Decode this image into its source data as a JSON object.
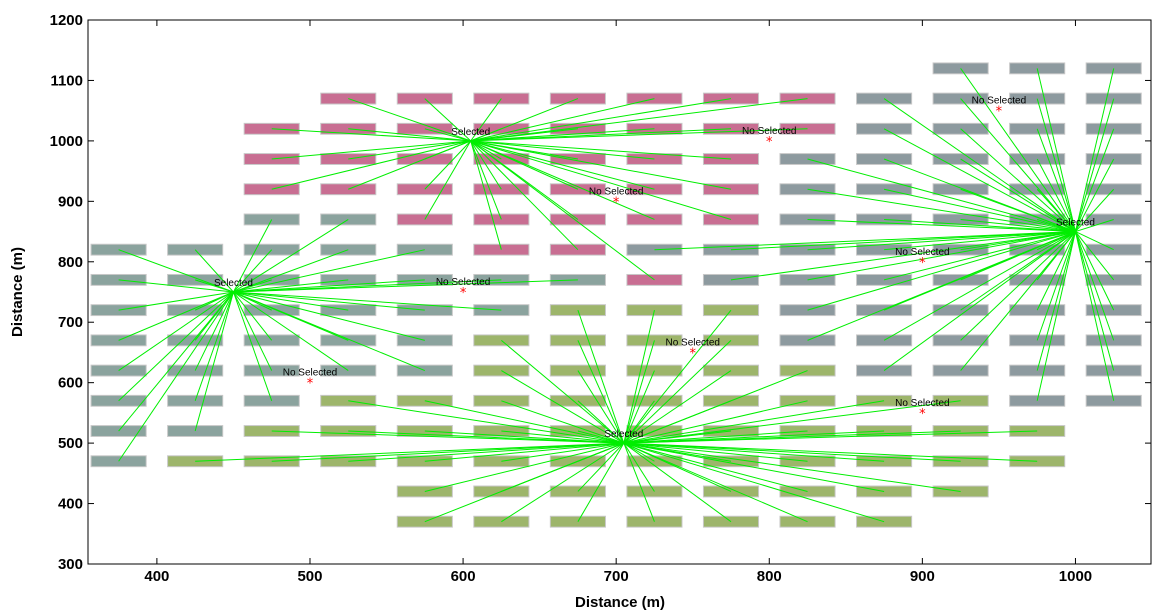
{
  "chart_data": {
    "type": "scatter",
    "title": "",
    "xlabel": "Distance (m)",
    "ylabel": "Distance (m)",
    "xlim": [
      355,
      1050
    ],
    "ylim": [
      300,
      1200
    ],
    "xticks": [
      400,
      500,
      600,
      700,
      800,
      900,
      1000
    ],
    "yticks": [
      300,
      400,
      500,
      600,
      700,
      800,
      900,
      1000,
      1100,
      1200
    ],
    "grid": false,
    "colors": {
      "pink": "#c86e92",
      "green": "#9db56b",
      "gray": "#8d9a9f",
      "teal": "#8ba39e",
      "link": "#00ee00",
      "unselected": "#ff0000"
    },
    "block_width": 36,
    "block_height": 18,
    "columns": [
      {
        "x": 375,
        "rows": [
          [
            470,
            "teal"
          ],
          [
            520,
            "teal"
          ],
          [
            570,
            "teal"
          ],
          [
            620,
            "teal"
          ],
          [
            670,
            "teal"
          ],
          [
            720,
            "teal"
          ],
          [
            770,
            "teal"
          ],
          [
            820,
            "teal"
          ]
        ]
      },
      {
        "x": 425,
        "rows": [
          [
            470,
            "green"
          ],
          [
            520,
            "teal"
          ],
          [
            570,
            "teal"
          ],
          [
            620,
            "teal"
          ],
          [
            670,
            "teal"
          ],
          [
            720,
            "teal"
          ],
          [
            770,
            "teal"
          ],
          [
            820,
            "teal"
          ]
        ]
      },
      {
        "x": 475,
        "rows": [
          [
            470,
            "green"
          ],
          [
            520,
            "green"
          ],
          [
            570,
            "teal"
          ],
          [
            620,
            "teal"
          ],
          [
            670,
            "teal"
          ],
          [
            720,
            "teal"
          ],
          [
            770,
            "teal"
          ],
          [
            820,
            "teal"
          ],
          [
            870,
            "teal"
          ],
          [
            920,
            "pink"
          ],
          [
            970,
            "pink"
          ],
          [
            1020,
            "pink"
          ]
        ]
      },
      {
        "x": 525,
        "rows": [
          [
            470,
            "green"
          ],
          [
            520,
            "green"
          ],
          [
            570,
            "green"
          ],
          [
            620,
            "teal"
          ],
          [
            670,
            "teal"
          ],
          [
            720,
            "teal"
          ],
          [
            770,
            "teal"
          ],
          [
            820,
            "teal"
          ],
          [
            870,
            "teal"
          ],
          [
            920,
            "pink"
          ],
          [
            970,
            "pink"
          ],
          [
            1020,
            "pink"
          ],
          [
            1070,
            "pink"
          ]
        ]
      },
      {
        "x": 575,
        "rows": [
          [
            370,
            "green"
          ],
          [
            420,
            "green"
          ],
          [
            470,
            "green"
          ],
          [
            520,
            "green"
          ],
          [
            570,
            "green"
          ],
          [
            620,
            "teal"
          ],
          [
            670,
            "teal"
          ],
          [
            720,
            "teal"
          ],
          [
            770,
            "teal"
          ],
          [
            820,
            "teal"
          ],
          [
            870,
            "pink"
          ],
          [
            920,
            "pink"
          ],
          [
            970,
            "pink"
          ],
          [
            1020,
            "pink"
          ],
          [
            1070,
            "pink"
          ]
        ]
      },
      {
        "x": 625,
        "rows": [
          [
            370,
            "green"
          ],
          [
            420,
            "green"
          ],
          [
            470,
            "green"
          ],
          [
            520,
            "green"
          ],
          [
            570,
            "green"
          ],
          [
            620,
            "green"
          ],
          [
            670,
            "green"
          ],
          [
            720,
            "teal"
          ],
          [
            770,
            "teal"
          ],
          [
            820,
            "pink"
          ],
          [
            870,
            "pink"
          ],
          [
            920,
            "pink"
          ],
          [
            970,
            "pink"
          ],
          [
            1020,
            "pink"
          ],
          [
            1070,
            "pink"
          ]
        ]
      },
      {
        "x": 675,
        "rows": [
          [
            370,
            "green"
          ],
          [
            420,
            "green"
          ],
          [
            470,
            "green"
          ],
          [
            520,
            "green"
          ],
          [
            570,
            "green"
          ],
          [
            620,
            "green"
          ],
          [
            670,
            "green"
          ],
          [
            720,
            "green"
          ],
          [
            770,
            "teal"
          ],
          [
            820,
            "pink"
          ],
          [
            870,
            "pink"
          ],
          [
            920,
            "pink"
          ],
          [
            970,
            "pink"
          ],
          [
            1020,
            "pink"
          ],
          [
            1070,
            "pink"
          ]
        ]
      },
      {
        "x": 725,
        "rows": [
          [
            370,
            "green"
          ],
          [
            420,
            "green"
          ],
          [
            470,
            "green"
          ],
          [
            520,
            "green"
          ],
          [
            570,
            "green"
          ],
          [
            620,
            "green"
          ],
          [
            670,
            "green"
          ],
          [
            720,
            "green"
          ],
          [
            770,
            "pink"
          ],
          [
            820,
            "gray"
          ],
          [
            870,
            "pink"
          ],
          [
            920,
            "pink"
          ],
          [
            970,
            "pink"
          ],
          [
            1020,
            "pink"
          ],
          [
            1070,
            "pink"
          ]
        ]
      },
      {
        "x": 775,
        "rows": [
          [
            370,
            "green"
          ],
          [
            420,
            "green"
          ],
          [
            470,
            "green"
          ],
          [
            520,
            "green"
          ],
          [
            570,
            "green"
          ],
          [
            620,
            "green"
          ],
          [
            670,
            "green"
          ],
          [
            720,
            "green"
          ],
          [
            770,
            "gray"
          ],
          [
            820,
            "gray"
          ],
          [
            870,
            "pink"
          ],
          [
            920,
            "pink"
          ],
          [
            970,
            "pink"
          ],
          [
            1020,
            "pink"
          ],
          [
            1070,
            "pink"
          ]
        ]
      },
      {
        "x": 825,
        "rows": [
          [
            370,
            "green"
          ],
          [
            420,
            "green"
          ],
          [
            470,
            "green"
          ],
          [
            520,
            "green"
          ],
          [
            570,
            "green"
          ],
          [
            620,
            "green"
          ],
          [
            670,
            "gray"
          ],
          [
            720,
            "gray"
          ],
          [
            770,
            "gray"
          ],
          [
            820,
            "gray"
          ],
          [
            870,
            "gray"
          ],
          [
            920,
            "gray"
          ],
          [
            970,
            "gray"
          ],
          [
            1020,
            "pink"
          ],
          [
            1070,
            "pink"
          ]
        ]
      },
      {
        "x": 875,
        "rows": [
          [
            370,
            "green"
          ],
          [
            420,
            "green"
          ],
          [
            470,
            "green"
          ],
          [
            520,
            "green"
          ],
          [
            570,
            "green"
          ],
          [
            620,
            "gray"
          ],
          [
            670,
            "gray"
          ],
          [
            720,
            "gray"
          ],
          [
            770,
            "gray"
          ],
          [
            820,
            "gray"
          ],
          [
            870,
            "gray"
          ],
          [
            920,
            "gray"
          ],
          [
            970,
            "gray"
          ],
          [
            1020,
            "gray"
          ],
          [
            1070,
            "gray"
          ]
        ]
      },
      {
        "x": 925,
        "rows": [
          [
            420,
            "green"
          ],
          [
            470,
            "green"
          ],
          [
            520,
            "green"
          ],
          [
            570,
            "green"
          ],
          [
            620,
            "gray"
          ],
          [
            670,
            "gray"
          ],
          [
            720,
            "gray"
          ],
          [
            770,
            "gray"
          ],
          [
            820,
            "gray"
          ],
          [
            870,
            "gray"
          ],
          [
            920,
            "gray"
          ],
          [
            970,
            "gray"
          ],
          [
            1020,
            "gray"
          ],
          [
            1070,
            "gray"
          ],
          [
            1120,
            "gray"
          ]
        ]
      },
      {
        "x": 975,
        "rows": [
          [
            470,
            "green"
          ],
          [
            520,
            "green"
          ],
          [
            570,
            "gray"
          ],
          [
            620,
            "gray"
          ],
          [
            670,
            "gray"
          ],
          [
            720,
            "gray"
          ],
          [
            770,
            "gray"
          ],
          [
            820,
            "gray"
          ],
          [
            870,
            "gray"
          ],
          [
            920,
            "gray"
          ],
          [
            970,
            "gray"
          ],
          [
            1020,
            "gray"
          ],
          [
            1070,
            "gray"
          ],
          [
            1120,
            "gray"
          ]
        ]
      },
      {
        "x": 1025,
        "rows": [
          [
            570,
            "gray"
          ],
          [
            620,
            "gray"
          ],
          [
            670,
            "gray"
          ],
          [
            720,
            "gray"
          ],
          [
            770,
            "gray"
          ],
          [
            820,
            "gray"
          ],
          [
            870,
            "gray"
          ],
          [
            920,
            "gray"
          ],
          [
            970,
            "gray"
          ],
          [
            1020,
            "gray"
          ],
          [
            1070,
            "gray"
          ],
          [
            1120,
            "gray"
          ]
        ]
      }
    ],
    "selected": [
      {
        "x": 450,
        "y": 750,
        "label": "Selected",
        "group": "teal"
      },
      {
        "x": 605,
        "y": 1000,
        "label": "Selected",
        "group": "pink"
      },
      {
        "x": 705,
        "y": 500,
        "label": "Selected",
        "group": "green"
      },
      {
        "x": 1000,
        "y": 850,
        "label": "Selected",
        "group": "gray"
      }
    ],
    "not_selected": [
      {
        "x": 500,
        "y": 600,
        "label": "No Selected"
      },
      {
        "x": 600,
        "y": 750,
        "label": "No Selected"
      },
      {
        "x": 700,
        "y": 900,
        "label": "No Selected"
      },
      {
        "x": 750,
        "y": 650,
        "label": "No Selected"
      },
      {
        "x": 800,
        "y": 1000,
        "label": "No Selected"
      },
      {
        "x": 900,
        "y": 800,
        "label": "No Selected"
      },
      {
        "x": 900,
        "y": 550,
        "label": "No Selected"
      },
      {
        "x": 950,
        "y": 1050,
        "label": "No Selected"
      }
    ]
  }
}
